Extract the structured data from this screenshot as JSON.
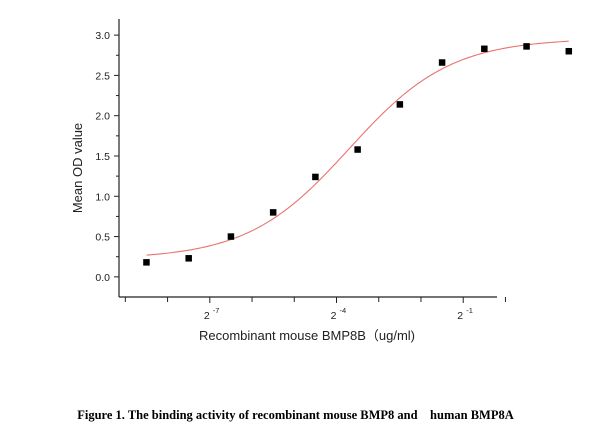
{
  "caption": "Figure 1. The binding activity of recombinant mouse BMP8 and    human BMP8A",
  "chart_data": {
    "type": "scatter",
    "title": "",
    "xlabel": "Recombinant mouse BMP8B（ug/ml)",
    "ylabel": "Mean OD value",
    "x_scale": "log2",
    "xlim_log2": [
      -9.15,
      -0.2
    ],
    "ylim": [
      -0.25,
      3.2
    ],
    "y_ticks": [
      0.0,
      0.5,
      1.0,
      1.5,
      2.0,
      2.5,
      3.0
    ],
    "y_tick_labels": [
      "0.0",
      "0.5",
      "1.0",
      "1.5",
      "2.0",
      "2.5",
      "3.0"
    ],
    "x_labeled_ticks": [
      {
        "base": "2",
        "exponent": "-7",
        "log2": -7
      },
      {
        "base": "2",
        "exponent": "-4",
        "log2": -4
      },
      {
        "base": "2",
        "exponent": "-1",
        "log2": -1
      }
    ],
    "x_minor_ticks_log2": [
      -9,
      -8,
      -6,
      -5,
      -3,
      -2,
      0
    ],
    "grid": false,
    "colors": {
      "points": "#000000",
      "fit": "#e8736f",
      "axis": "#222222"
    },
    "points": [
      {
        "x": "2^-8.5",
        "x_log2": -8.5,
        "y": 0.18
      },
      {
        "x": "2^-7.5",
        "x_log2": -7.5,
        "y": 0.23
      },
      {
        "x": "2^-6.5",
        "x_log2": -6.5,
        "y": 0.5
      },
      {
        "x": "2^-5.5",
        "x_log2": -5.5,
        "y": 0.8
      },
      {
        "x": "2^-4.5",
        "x_log2": -4.5,
        "y": 1.24
      },
      {
        "x": "2^-3.5",
        "x_log2": -3.5,
        "y": 1.58
      },
      {
        "x": "2^-2.5",
        "x_log2": -2.5,
        "y": 2.14
      },
      {
        "x": "2^-1.5",
        "x_log2": -1.5,
        "y": 2.66
      },
      {
        "x": "2^-0.5",
        "x_log2": -0.5,
        "y": 2.83
      },
      {
        "x": "2^0.5",
        "x_log2": 0.5,
        "y": 2.86
      },
      {
        "x": "2^1.5",
        "x_log2": 1.5,
        "y": 2.8
      }
    ],
    "fit_curve": {
      "model": "4PL",
      "bottom": 0.22,
      "top": 2.96,
      "ec50_log2": -3.7,
      "hill": 1.2,
      "x_range_log2": [
        -8.5,
        1.5
      ]
    }
  }
}
